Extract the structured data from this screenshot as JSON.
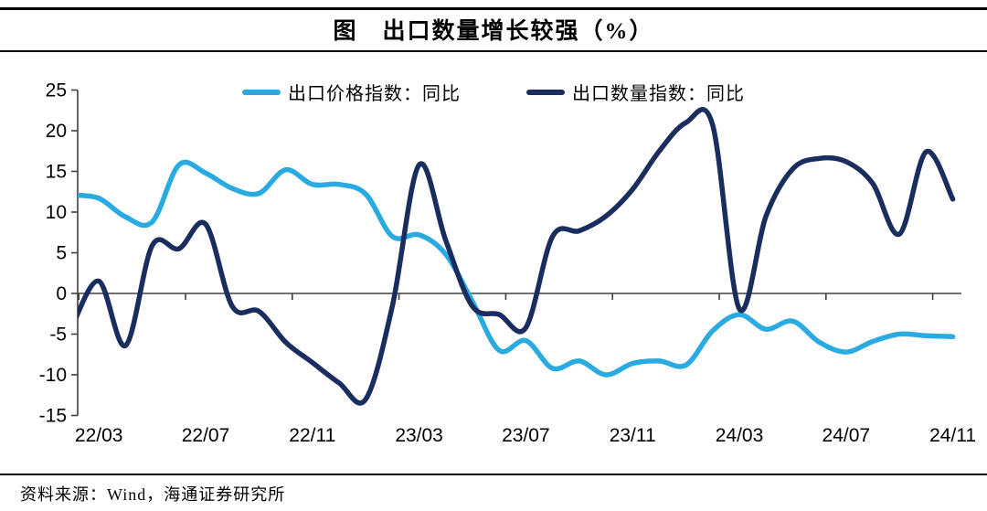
{
  "header": {
    "title": "图　出口数量增长较强（%）"
  },
  "legend": {
    "items": [
      {
        "label": "出口价格指数：同比",
        "color": "#29ABE2"
      },
      {
        "label": "出口数量指数：同比",
        "color": "#1A2D5F"
      }
    ]
  },
  "chart_data": {
    "type": "line",
    "title": "图　出口数量增长较强（%）",
    "x": [
      "22/02",
      "22/03",
      "22/04",
      "22/05",
      "22/06",
      "22/07",
      "22/08",
      "22/09",
      "22/10",
      "22/11",
      "22/12",
      "23/01",
      "23/02",
      "23/03",
      "23/04",
      "23/05",
      "23/06",
      "23/07",
      "23/08",
      "23/09",
      "23/10",
      "23/11",
      "23/12",
      "24/01",
      "24/02",
      "24/03",
      "24/04",
      "24/05",
      "24/06",
      "24/07",
      "24/08",
      "24/09",
      "24/10",
      "24/11"
    ],
    "series": [
      {
        "name": "出口价格指数：同比",
        "color": "#29ABE2",
        "values": [
          12.1,
          11.7,
          9.4,
          8.8,
          15.8,
          14.8,
          12.9,
          12.3,
          15.2,
          13.4,
          13.4,
          12.2,
          7.0,
          7.2,
          4.8,
          -1.0,
          -7.0,
          -5.8,
          -9.2,
          -8.3,
          -10.0,
          -8.6,
          -8.3,
          -8.8,
          -4.6,
          -2.6,
          -4.4,
          -3.4,
          -6.0,
          -7.2,
          -5.9,
          -5.0,
          -5.2,
          -5.3
        ]
      },
      {
        "name": "出口数量指数：同比",
        "color": "#1A2D5F",
        "values": [
          -4.0,
          1.5,
          -6.4,
          5.9,
          5.5,
          8.5,
          -1.6,
          -2.2,
          -6.0,
          -8.5,
          -11.0,
          -13.0,
          -1.5,
          15.8,
          6.5,
          -1.6,
          -2.6,
          -4.2,
          7.0,
          7.7,
          9.5,
          12.8,
          17.5,
          21.0,
          20.7,
          -1.9,
          9.5,
          15.3,
          16.6,
          16.2,
          13.5,
          7.3,
          17.4,
          11.6
        ]
      }
    ],
    "ylim": [
      -15,
      25
    ],
    "y_ticks": [
      25,
      20,
      15,
      10,
      5,
      0,
      -5,
      -10,
      -15
    ],
    "x_tick_labels": [
      "22/03",
      "22/07",
      "22/11",
      "23/03",
      "23/07",
      "23/11",
      "24/03",
      "24/07",
      "24/11"
    ],
    "grid": "off",
    "axis_line_at_zero": true,
    "legend_position": "top-center",
    "axis_color": "#404040",
    "tick_label_color": "#000000"
  },
  "source": {
    "text": "资料来源：Wind，海通证券研究所"
  }
}
